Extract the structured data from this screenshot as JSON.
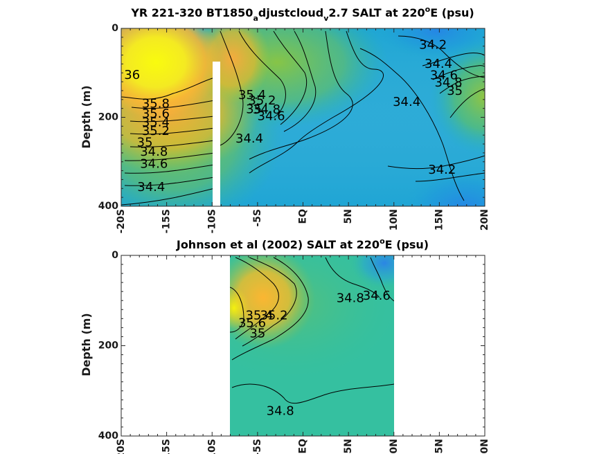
{
  "chart_data": [
    {
      "type": "heatmap",
      "title_parts": [
        "YR 221-320 BT1850",
        "a",
        "djustcloud",
        "v",
        "2.7 SALT at 220",
        "o",
        "E (psu)"
      ],
      "ylabel": "Depth (m)",
      "xlabel": "",
      "xlim": [
        -20,
        20
      ],
      "ylim": [
        0,
        400
      ],
      "y_inverted": true,
      "x_ticks": [
        -20,
        -15,
        -10,
        -5,
        0,
        5,
        10,
        15,
        20
      ],
      "x_tick_labels": [
        "-20S",
        "-15S",
        "-10S",
        "-5S",
        "EQ",
        "5N",
        "10N",
        "15N",
        "20N"
      ],
      "y_ticks": [
        0,
        200,
        400
      ],
      "y_tick_labels": [
        "0",
        "200",
        "400"
      ],
      "colormap": "parula",
      "data_gap_x": [
        -10.3,
        -9.5
      ],
      "contour_labels": [
        {
          "text": "36",
          "x": -18.8,
          "y": 105
        },
        {
          "text": "35.8",
          "x": -16.2,
          "y": 170
        },
        {
          "text": "35.6",
          "x": -16.2,
          "y": 192
        },
        {
          "text": "35.4",
          "x": -16.2,
          "y": 212
        },
        {
          "text": "35.2",
          "x": -16.2,
          "y": 231
        },
        {
          "text": "35",
          "x": -17.4,
          "y": 257
        },
        {
          "text": "34.8",
          "x": -16.4,
          "y": 278
        },
        {
          "text": "34.6",
          "x": -16.4,
          "y": 305
        },
        {
          "text": "34.4",
          "x": -16.7,
          "y": 357
        },
        {
          "text": "35.4",
          "x": -5.6,
          "y": 150
        },
        {
          "text": "35.2",
          "x": -4.5,
          "y": 163
        },
        {
          "text": "35",
          "x": -5.4,
          "y": 182
        },
        {
          "text": "34.8",
          "x": -4.0,
          "y": 183
        },
        {
          "text": "34.6",
          "x": -3.5,
          "y": 198
        },
        {
          "text": "34.4",
          "x": -5.9,
          "y": 248
        },
        {
          "text": "34.2",
          "x": 14.3,
          "y": 37
        },
        {
          "text": "34.4",
          "x": 14.9,
          "y": 80
        },
        {
          "text": "34.6",
          "x": 15.5,
          "y": 106
        },
        {
          "text": "34.8",
          "x": 16.0,
          "y": 122
        },
        {
          "text": "35",
          "x": 16.7,
          "y": 141
        },
        {
          "text": "34.4",
          "x": 11.4,
          "y": 166
        },
        {
          "text": "34.2",
          "x": 15.3,
          "y": 318
        }
      ]
    },
    {
      "type": "heatmap",
      "title_parts": [
        "Johnson et al (2002) SALT at 220",
        "o",
        "E (psu)"
      ],
      "ylabel": "Depth (m)",
      "xlabel": "",
      "xlim": [
        -20,
        20
      ],
      "ylim": [
        0,
        400
      ],
      "y_inverted": true,
      "x_ticks": [
        -20,
        -15,
        -10,
        -5,
        0,
        5,
        10,
        15,
        20
      ],
      "x_tick_labels": [
        "-20S",
        "-15S",
        "-10S",
        "-5S",
        "EQ",
        "5N",
        "10N",
        "15N",
        "20N"
      ],
      "y_ticks": [
        0,
        200,
        400
      ],
      "y_tick_labels": [
        "0",
        "200",
        "400"
      ],
      "colormap": "parula",
      "data_xlim": [
        -8,
        10
      ],
      "contour_labels": [
        {
          "text": "35.6",
          "x": -5.6,
          "y": 150
        },
        {
          "text": "35.4",
          "x": -4.8,
          "y": 133
        },
        {
          "text": "35.2",
          "x": -3.2,
          "y": 133
        },
        {
          "text": "35",
          "x": -5.0,
          "y": 173
        },
        {
          "text": "34.8",
          "x": 5.2,
          "y": 95
        },
        {
          "text": "34.6",
          "x": 8.1,
          "y": 90
        },
        {
          "text": "34.8",
          "x": -2.5,
          "y": 345
        }
      ]
    }
  ]
}
